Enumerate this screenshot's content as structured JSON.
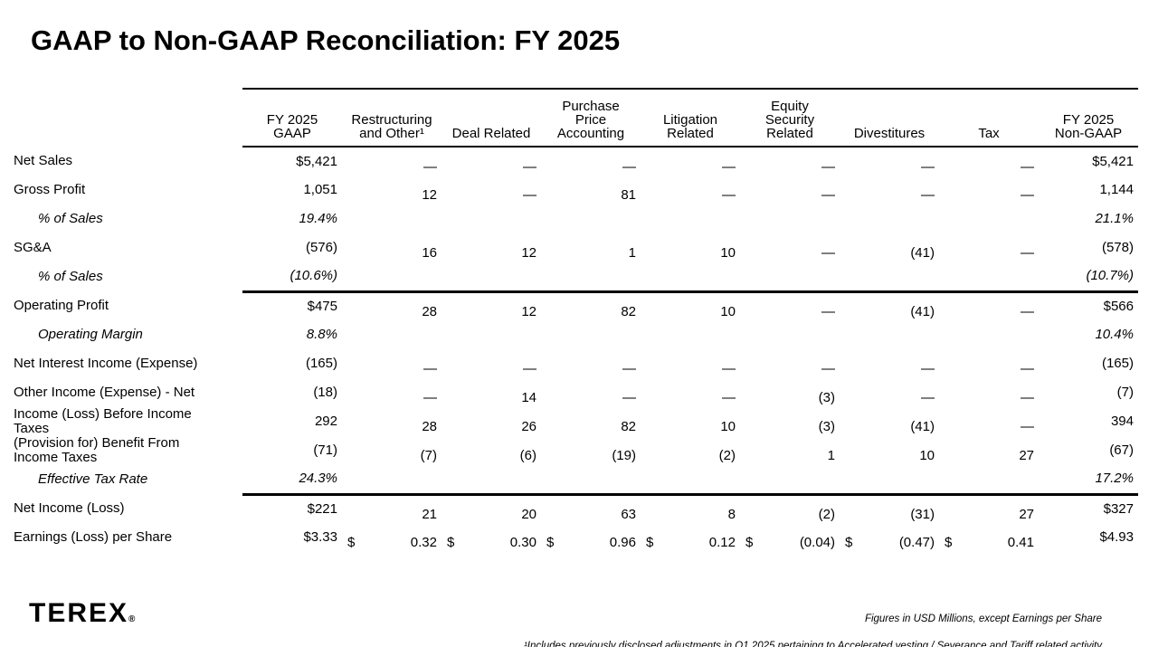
{
  "slide": {
    "title": "GAAP to Non-GAAP Reconciliation: FY 2025",
    "logo_text": "TEREX",
    "logo_reg": "®",
    "footnotes": {
      "line1": "Figures in  USD Millions, except Earnings per Share",
      "line2": "¹Includes previously disclosed adjustments in Q1 2025 pertaining to Accelerated vesting / Severance and Tariff related activity"
    }
  },
  "table": {
    "columns": [
      {
        "id": "gaap",
        "label": "FY 2025\nGAAP"
      },
      {
        "id": "restructuring",
        "label": "Restructuring\nand Other¹"
      },
      {
        "id": "deal-related",
        "label": "Deal Related"
      },
      {
        "id": "purchase-price-accounting",
        "label": "Purchase\nPrice\nAccounting"
      },
      {
        "id": "litigation-related",
        "label": "Litigation\nRelated"
      },
      {
        "id": "equity-security-related",
        "label": "Equity\nSecurity\nRelated"
      },
      {
        "id": "divestitures",
        "label": "Divestitures"
      },
      {
        "id": "tax",
        "label": "Tax"
      },
      {
        "id": "nongaap",
        "label": "FY 2025\nNon-GAAP"
      }
    ],
    "rows": [
      {
        "label": "Net Sales",
        "values": [
          "$5,421",
          "—",
          "—",
          "—",
          "—",
          "—",
          "—",
          "—",
          "$5,421"
        ]
      },
      {
        "label": "Gross Profit",
        "values": [
          "1,051",
          "12",
          "—",
          "81",
          "—",
          "—",
          "—",
          "—",
          "1,144"
        ]
      },
      {
        "label": "% of Sales",
        "italic": true,
        "indent": true,
        "values": [
          "19.4%",
          "",
          "",
          "",
          "",
          "",
          "",
          "",
          "21.1%"
        ]
      },
      {
        "label": "SG&A",
        "values": [
          "(576)",
          "16",
          "12",
          "1",
          "10",
          "—",
          "(41)",
          "—",
          "(578)"
        ]
      },
      {
        "label": "% of Sales",
        "italic": true,
        "indent": true,
        "values": [
          "(10.6%)",
          "",
          "",
          "",
          "",
          "",
          "",
          "",
          "(10.7%)"
        ]
      },
      {
        "label": "Operating Profit",
        "rule_above": true,
        "values": [
          "$475",
          "28",
          "12",
          "82",
          "10",
          "—",
          "(41)",
          "—",
          "$566"
        ]
      },
      {
        "label": "Operating Margin",
        "italic": true,
        "indent": true,
        "values": [
          "8.8%",
          "",
          "",
          "",
          "",
          "",
          "",
          "",
          "10.4%"
        ]
      },
      {
        "label": "Net Interest Income (Expense)",
        "values": [
          "(165)",
          "—",
          "—",
          "—",
          "—",
          "—",
          "—",
          "—",
          "(165)"
        ]
      },
      {
        "label": "Other Income (Expense) - Net",
        "values": [
          "(18)",
          "—",
          "14",
          "—",
          "—",
          "(3)",
          "—",
          "—",
          "(7)"
        ]
      },
      {
        "label": "Income (Loss) Before Income\nTaxes",
        "values": [
          "292",
          "28",
          "26",
          "82",
          "10",
          "(3)",
          "(41)",
          "—",
          "394"
        ]
      },
      {
        "label": "(Provision for) Benefit From\nIncome Taxes",
        "values": [
          "(71)",
          "(7)",
          "(6)",
          "(19)",
          "(2)",
          "1",
          "10",
          "27",
          "(67)"
        ]
      },
      {
        "label": "Effective Tax Rate",
        "italic": true,
        "indent": true,
        "values": [
          "24.3%",
          "",
          "",
          "",
          "",
          "",
          "",
          "",
          "17.2%"
        ]
      },
      {
        "label": "Net Income (Loss)",
        "rule_above": true,
        "values": [
          "$221",
          "21",
          "20",
          "63",
          "8",
          "(2)",
          "(31)",
          "27",
          "$327"
        ]
      },
      {
        "label": "Earnings (Loss) per Share",
        "values": [
          "$3.33",
          [
            "$",
            "0.32"
          ],
          [
            "$",
            "0.30"
          ],
          [
            "$",
            "0.96"
          ],
          [
            "$",
            "0.12"
          ],
          [
            "$",
            "(0.04)"
          ],
          [
            "$",
            "(0.47)"
          ],
          [
            "$",
            "0.41"
          ],
          "$4.93"
        ]
      }
    ]
  }
}
